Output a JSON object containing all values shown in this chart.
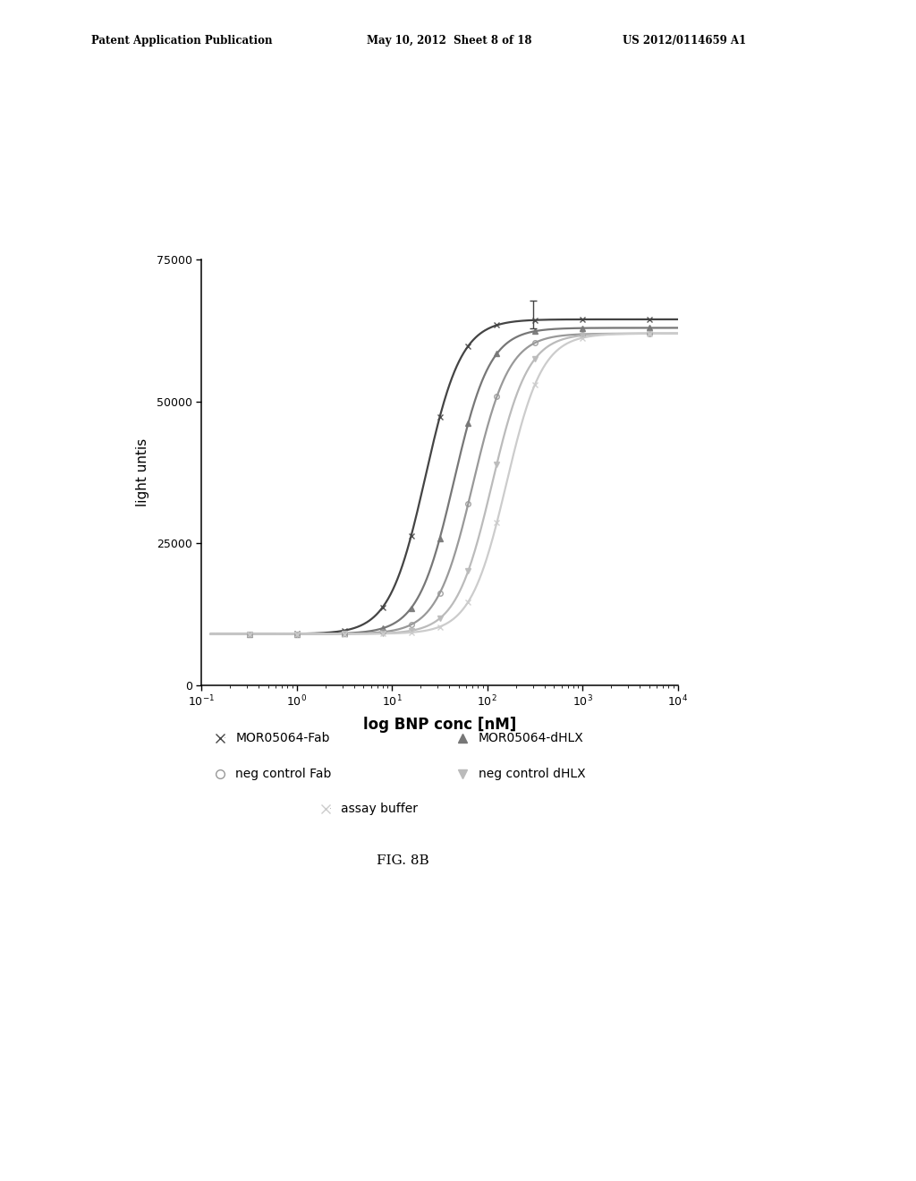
{
  "title": "",
  "xlabel": "log BNP conc [nM]",
  "ylabel": "light untis",
  "ylim": [
    0,
    75000
  ],
  "yticks": [
    0,
    25000,
    50000,
    75000
  ],
  "background_color": "#ffffff",
  "curves": [
    {
      "name": "MOR05064-Fab",
      "color": "#444444",
      "lw": 1.6,
      "ec50_log": 1.35,
      "hill": 2.3,
      "ymin": 9000,
      "ymax": 64500,
      "marker": "x",
      "marker_size": 5
    },
    {
      "name": "MOR05064-dHLX",
      "color": "#777777",
      "lw": 1.6,
      "ec50_log": 1.65,
      "hill": 2.3,
      "ymin": 9000,
      "ymax": 63000,
      "marker": "^",
      "marker_size": 5
    },
    {
      "name": "neg control Fab",
      "color": "#999999",
      "lw": 1.6,
      "ec50_log": 1.85,
      "hill": 2.3,
      "ymin": 9000,
      "ymax": 62000,
      "marker": "o",
      "marker_size": 4,
      "marker_facecolor": "none"
    },
    {
      "name": "neg control dHLX",
      "color": "#bbbbbb",
      "lw": 1.6,
      "ec50_log": 2.05,
      "hill": 2.3,
      "ymin": 9000,
      "ymax": 62000,
      "marker": "v",
      "marker_size": 5
    },
    {
      "name": "assay buffer",
      "color": "#cccccc",
      "lw": 1.6,
      "ec50_log": 2.2,
      "hill": 2.3,
      "ymin": 9000,
      "ymax": 62000,
      "marker": "x",
      "marker_size": 4
    }
  ],
  "header_left": "Patent Application Publication",
  "header_mid": "May 10, 2012  Sheet 8 of 18",
  "header_right": "US 2012/0114659 A1",
  "fig_label": "FIG. 8B",
  "legend_entries": [
    {
      "label": "MOR05064-Fab",
      "marker": "x",
      "color": "#444444",
      "fc": "#444444"
    },
    {
      "label": "MOR05064-dHLX",
      "marker": "^",
      "color": "#777777",
      "fc": "#777777"
    },
    {
      "label": "neg control Fab",
      "marker": "o",
      "color": "#999999",
      "fc": "none"
    },
    {
      "label": "neg control dHLX",
      "marker": "v",
      "color": "#bbbbbb",
      "fc": "#bbbbbb"
    },
    {
      "label": "assay buffer",
      "marker": "x",
      "color": "#cccccc",
      "fc": "#cccccc"
    }
  ]
}
